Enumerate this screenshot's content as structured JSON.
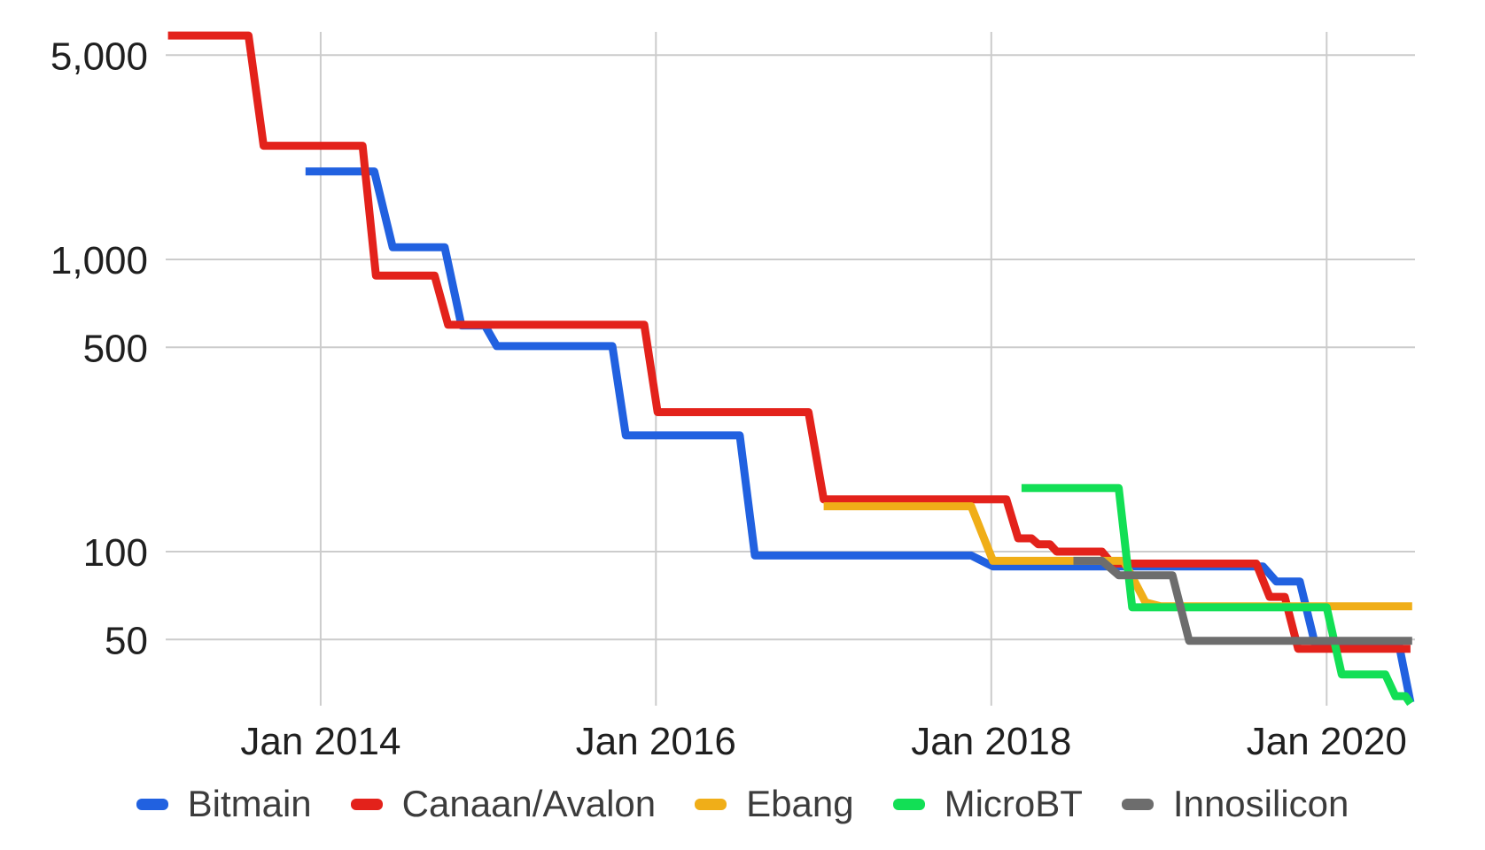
{
  "chart_data": {
    "type": "line",
    "title": "",
    "x_axis": {
      "label": "",
      "ticks": [
        2014,
        2016,
        2018,
        2020
      ],
      "tick_labels": [
        "Jan 2014",
        "Jan 2016",
        "Jan 2018",
        "Jan 2020"
      ],
      "range": [
        2013.076,
        2020.527
      ]
    },
    "y_axis": {
      "label": "",
      "scale": "log",
      "ticks": [
        5000,
        1000,
        500,
        100,
        50
      ],
      "tick_labels": [
        "5,000",
        "1,000",
        "500",
        "100",
        "50"
      ],
      "range": [
        29.7,
        6008
      ]
    },
    "grid": true,
    "legend_position": "bottom",
    "series": [
      {
        "name": "Bitmain",
        "color": "#2161e0",
        "points": [
          [
            2013.91,
            2000
          ],
          [
            2014.32,
            2000
          ],
          [
            2014.43,
            1100
          ],
          [
            2014.74,
            1100
          ],
          [
            2014.84,
            594
          ],
          [
            2014.98,
            594
          ],
          [
            2015.05,
            505
          ],
          [
            2015.74,
            505
          ],
          [
            2015.82,
            250
          ],
          [
            2016.5,
            250
          ],
          [
            2016.59,
            97
          ],
          [
            2017.88,
            97
          ],
          [
            2018.01,
            89
          ],
          [
            2019.62,
            89
          ],
          [
            2019.7,
            79
          ],
          [
            2019.84,
            79
          ],
          [
            2019.93,
            48.5
          ],
          [
            2020.43,
            48.5
          ],
          [
            2020.5,
            30.5
          ]
        ]
      },
      {
        "name": "Canaan/Avalon",
        "color": "#e3221b",
        "points": [
          [
            2013.09,
            5840
          ],
          [
            2013.57,
            5840
          ],
          [
            2013.66,
            2450
          ],
          [
            2014.25,
            2450
          ],
          [
            2014.33,
            880
          ],
          [
            2014.68,
            880
          ],
          [
            2014.76,
            598
          ],
          [
            2015.93,
            598
          ],
          [
            2016.01,
            300
          ],
          [
            2016.91,
            300
          ],
          [
            2017.0,
            151
          ],
          [
            2018.09,
            151
          ],
          [
            2018.16,
            111
          ],
          [
            2018.24,
            111
          ],
          [
            2018.28,
            106
          ],
          [
            2018.35,
            106
          ],
          [
            2018.39,
            100
          ],
          [
            2018.66,
            100
          ],
          [
            2018.72,
            91
          ],
          [
            2019.58,
            91
          ],
          [
            2019.66,
            70
          ],
          [
            2019.75,
            70
          ],
          [
            2019.83,
            46.5
          ],
          [
            2020.5,
            46.5
          ]
        ]
      },
      {
        "name": "Ebang",
        "color": "#f0ae18",
        "points": [
          [
            2017.0,
            143
          ],
          [
            2017.88,
            143
          ],
          [
            2018.01,
            93
          ],
          [
            2018.79,
            93
          ],
          [
            2018.92,
            67
          ],
          [
            2019.01,
            65
          ],
          [
            2020.51,
            65
          ]
        ]
      },
      {
        "name": "MicroBT",
        "color": "#12df55",
        "points": [
          [
            2018.18,
            165
          ],
          [
            2018.76,
            165
          ],
          [
            2018.84,
            64.5
          ],
          [
            2020.0,
            64.5
          ],
          [
            2020.09,
            38
          ],
          [
            2020.35,
            38
          ],
          [
            2020.41,
            32
          ],
          [
            2020.47,
            32
          ],
          [
            2020.5,
            30.2
          ]
        ]
      },
      {
        "name": "Innosilicon",
        "color": "#6d6d6d",
        "points": [
          [
            2018.49,
            93
          ],
          [
            2018.66,
            93
          ],
          [
            2018.76,
            83
          ],
          [
            2019.08,
            83
          ],
          [
            2019.18,
            49.5
          ],
          [
            2020.51,
            49.5
          ]
        ]
      }
    ]
  },
  "colors": {
    "background": "#ffffff",
    "gridline": "#cccccc",
    "axis_text": "#1f1f1f",
    "legend_text": "#3c3c3c"
  }
}
